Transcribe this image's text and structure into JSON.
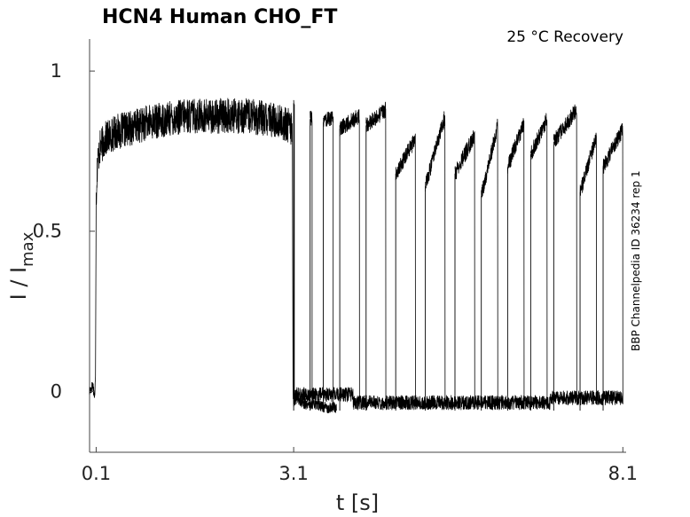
{
  "chart_data": {
    "type": "line",
    "title": "HCN4  Human  CHO_FT",
    "subtitle": "25 °C  Recovery",
    "side_note": "BBP Channelpedia ID 36234 rep 1",
    "xlabel": "t [s]",
    "ylabel_main": "I / I",
    "ylabel_sub": "max",
    "xticks": [
      {
        "value": 0.1,
        "label": "0.1"
      },
      {
        "value": 3.1,
        "label": "3.1"
      },
      {
        "value": 8.1,
        "label": "8.1"
      }
    ],
    "yticks": [
      {
        "value": 0,
        "label": "0"
      },
      {
        "value": 0.5,
        "label": "0.5"
      },
      {
        "value": 1,
        "label": "1"
      }
    ],
    "xlim": [
      0.0,
      8.15
    ],
    "ylim": [
      -0.19,
      1.1
    ],
    "grid": false,
    "line_color": "#000000",
    "series": [
      {
        "x": [
          0.0,
          0.05,
          0.08,
          0.09,
          0.1,
          0.12,
          0.16,
          0.25,
          0.4,
          0.6,
          0.9,
          1.2,
          1.5,
          1.8,
          2.1,
          2.4,
          2.7,
          2.9,
          3.05,
          3.08,
          3.09,
          3.1,
          3.15,
          3.2,
          3.3,
          3.45,
          3.6,
          3.75
        ],
        "y": [
          0.0,
          0.02,
          -0.02,
          0.06,
          0.6,
          0.72,
          0.76,
          0.79,
          0.81,
          0.82,
          0.84,
          0.85,
          0.86,
          0.86,
          0.86,
          0.86,
          0.85,
          0.84,
          0.83,
          0.8,
          0.0,
          -0.03,
          -0.02,
          -0.03,
          -0.04,
          -0.04,
          -0.05,
          -0.05
        ]
      }
    ],
    "recovery_bands": [
      {
        "start": 3.1,
        "end": 3.11,
        "upper_start": 0.9,
        "upper_end": 0.9
      },
      {
        "start": 3.35,
        "end": 3.38,
        "upper_start": 0.85,
        "upper_end": 0.86
      },
      {
        "start": 3.55,
        "end": 3.7,
        "upper_start": 0.84,
        "upper_end": 0.86
      },
      {
        "start": 3.8,
        "end": 4.1,
        "upper_start": 0.82,
        "upper_end": 0.86
      },
      {
        "start": 4.2,
        "end": 4.5,
        "upper_start": 0.83,
        "upper_end": 0.88
      },
      {
        "start": 4.65,
        "end": 4.95,
        "upper_start": 0.68,
        "upper_end": 0.79
      },
      {
        "start": 5.1,
        "end": 5.4,
        "upper_start": 0.64,
        "upper_end": 0.86
      },
      {
        "start": 5.55,
        "end": 5.85,
        "upper_start": 0.68,
        "upper_end": 0.8
      },
      {
        "start": 5.95,
        "end": 6.2,
        "upper_start": 0.61,
        "upper_end": 0.83
      },
      {
        "start": 6.35,
        "end": 6.6,
        "upper_start": 0.7,
        "upper_end": 0.84
      },
      {
        "start": 6.7,
        "end": 6.95,
        "upper_start": 0.74,
        "upper_end": 0.85
      },
      {
        "start": 7.05,
        "end": 7.4,
        "upper_start": 0.78,
        "upper_end": 0.88
      },
      {
        "start": 7.45,
        "end": 7.7,
        "upper_start": 0.62,
        "upper_end": 0.8
      },
      {
        "start": 7.8,
        "end": 8.1,
        "upper_start": 0.7,
        "upper_end": 0.82
      }
    ]
  }
}
